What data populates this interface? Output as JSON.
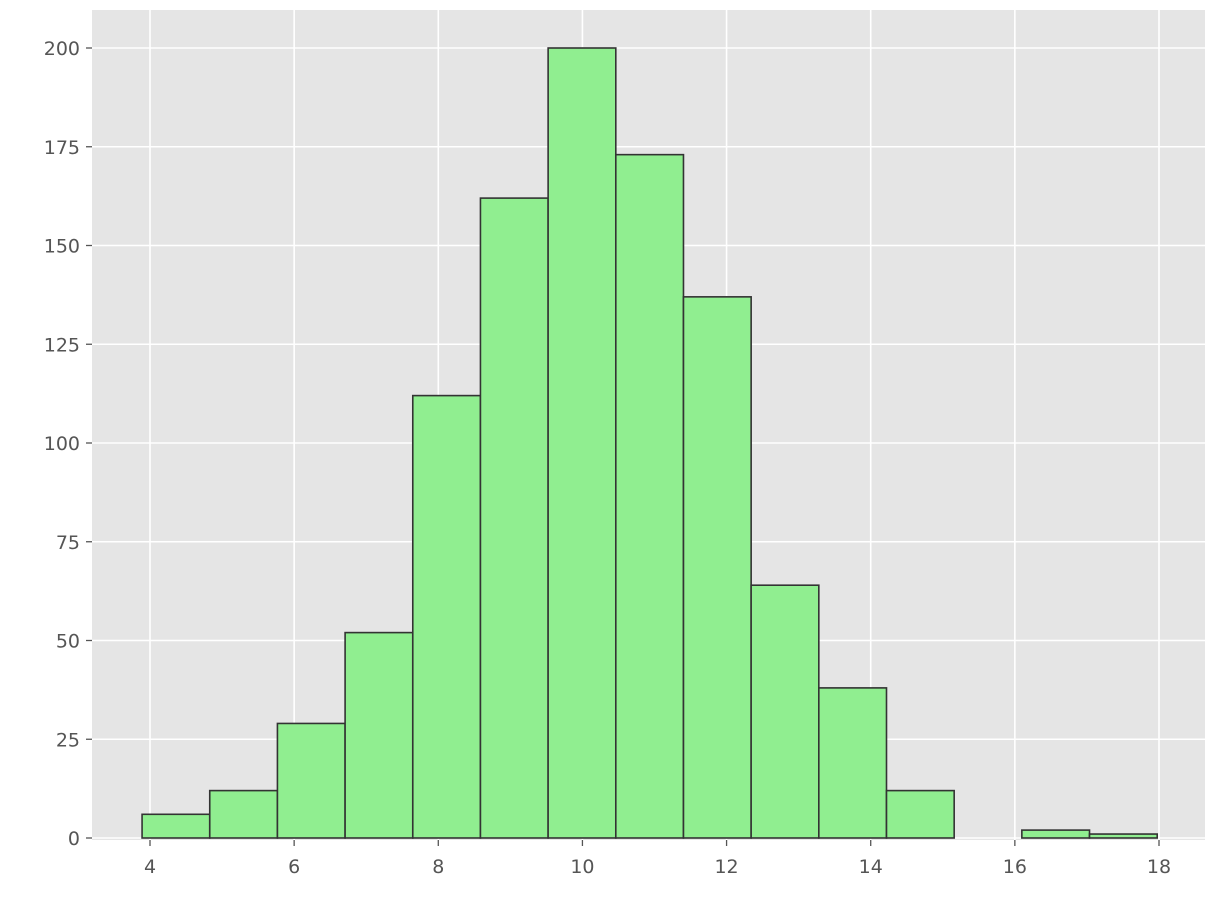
{
  "chart_data": {
    "type": "histogram",
    "title": "",
    "xlabel": "",
    "ylabel": "",
    "bin_start": 3.89,
    "bin_width": 0.939,
    "counts": [
      6,
      12,
      29,
      52,
      112,
      162,
      200,
      173,
      137,
      64,
      38,
      12,
      0,
      2,
      1
    ],
    "xlim": [
      3.1,
      18.6
    ],
    "ylim": [
      0,
      210
    ],
    "xticks": [
      4,
      6,
      8,
      10,
      12,
      14,
      16,
      18
    ],
    "yticks": [
      0,
      25,
      50,
      75,
      100,
      125,
      150,
      175,
      200
    ],
    "grid": true,
    "style": "ggplot",
    "colors": {
      "bar_fill": "#90ee90",
      "bar_edge": "#333333",
      "background": "#e5e5e5",
      "grid": "#ffffff"
    }
  }
}
